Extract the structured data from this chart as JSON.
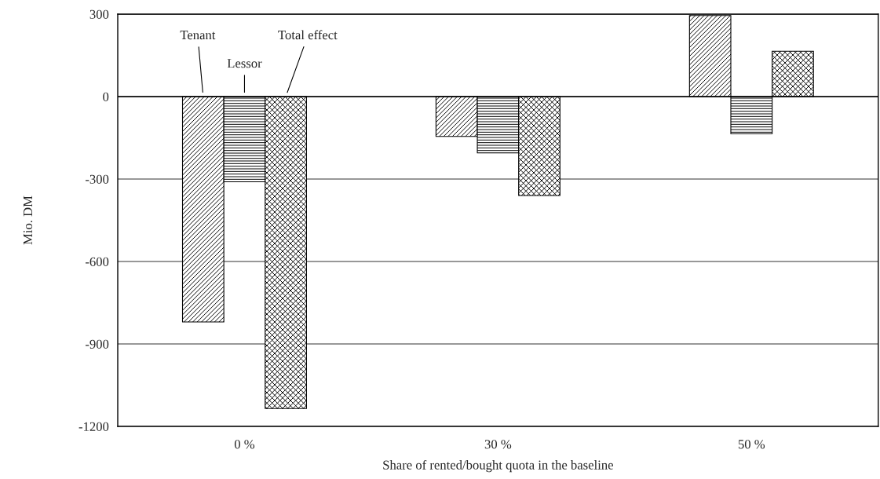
{
  "chart_data": {
    "type": "bar",
    "xlabel": "Share of rented/bought quota in the baseline",
    "ylabel": "Mio. DM",
    "categories": [
      "0 %",
      "30 %",
      "50 %"
    ],
    "series": [
      {
        "name": "Tenant",
        "color": "#000000",
        "values": [
          -820,
          -145,
          295
        ]
      },
      {
        "name": "Lessor",
        "color": "#000000",
        "values": [
          -310,
          -205,
          -135
        ]
      },
      {
        "name": "Total effect",
        "color": "#000000",
        "values": [
          -1135,
          -360,
          165
        ]
      }
    ],
    "ylim": [
      -1200,
      300
    ],
    "yticks": [
      {
        "value": -1200,
        "label": "-1200"
      },
      {
        "value": -900,
        "label": "-900"
      },
      {
        "value": -600,
        "label": "-600"
      },
      {
        "value": -300,
        "label": "-300"
      },
      0,
      300
    ],
    "grid": "y",
    "legend": false
  }
}
